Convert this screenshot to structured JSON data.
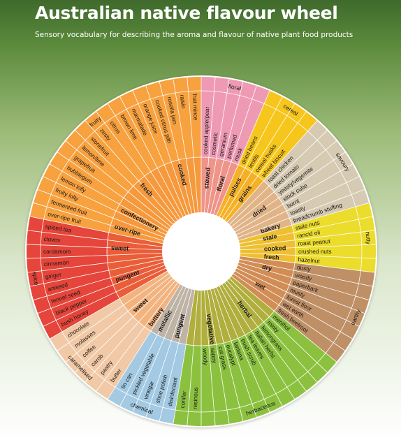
{
  "header": {
    "title": "Australian native flavour wheel",
    "subtitle": "Sensory vocabulary for describing the aroma and flavour of native plant food products"
  },
  "wheel": {
    "categories": [
      {
        "label": "floral",
        "color": "#ee9ab5",
        "groups": [
          {
            "label": "stewed",
            "descriptors": [
              "cooked apple/pear",
              "cosmetic"
            ]
          },
          {
            "label": "floral",
            "descriptors": [
              "geranium",
              "perfumed",
              "musk"
            ]
          }
        ]
      },
      {
        "label": "cereal",
        "color": "#f7c61c",
        "groups": [
          {
            "label": "pulses",
            "descriptors": [
              "dried beans",
              "lentils"
            ]
          },
          {
            "label": "grains",
            "descriptors": [
              "cereal husks",
              "wheat biscuit"
            ]
          }
        ]
      },
      {
        "label": "savoury",
        "color": "#d6cab3",
        "groups": [
          {
            "label": "dried",
            "descriptors": [
              "roast chicken",
              "dried tomato",
              "yeasty/vegemite",
              "stock cube",
              "burnt",
              "toasty"
            ]
          },
          {
            "label": "bakery",
            "descriptors": [
              "breadcrumb stuffing"
            ]
          }
        ]
      },
      {
        "label": "nutty",
        "color": "#ecdc2c",
        "groups": [
          {
            "label": "stale",
            "descriptors": [
              "stale nuts",
              "rancid oil"
            ]
          },
          {
            "label": "cooked",
            "descriptors": [
              "roast peanut",
              "crushed nuts"
            ]
          },
          {
            "label": "fresh",
            "descriptors": [
              "hazelnut"
            ]
          }
        ]
      },
      {
        "label": "earthy",
        "color": "#bf8f66",
        "groups": [
          {
            "label": "dry",
            "descriptors": [
              "dusty",
              "woody",
              "paperbark"
            ]
          },
          {
            "label": "wet",
            "descriptors": [
              "musty",
              "forest floor",
              "wet earth",
              "fresh beetroot"
            ]
          }
        ]
      },
      {
        "label": "herbaceous",
        "color": "#8cc140",
        "groups": [
          {
            "label": "herbal",
            "descriptors": [
              "menthol",
              "minty",
              "lemongrass",
              "Italian herbs",
              "tea leaves",
              "bush scrub"
            ]
          },
          {
            "label": "vegetative",
            "descriptors": [
              "lantana",
              "eucalypt",
              "cut grass",
              "sappy",
              "woody",
              "resinous",
              "conifer"
            ]
          }
        ]
      },
      {
        "label": "chemical",
        "color": "#a3c9e3",
        "groups": [
          {
            "label": "pungent",
            "descriptors": [
              "disinfectant",
              "shoe polish",
              "vinegar"
            ]
          },
          {
            "label": "metallic",
            "descriptors": [
              "pickled vegetable",
              "tin can"
            ]
          }
        ]
      },
      {
        "label": "caramelised",
        "color": "#f2c9a6",
        "groups": [
          {
            "label": "buttery",
            "descriptors": [
              "butter"
            ]
          },
          {
            "label": "sweet",
            "descriptors": [
              "pastry",
              "carob",
              "coffee",
              "molasses",
              "chocolate"
            ]
          }
        ]
      },
      {
        "label": "spice",
        "color": "#e5453a",
        "groups": [
          {
            "label": "pungent",
            "descriptors": [
              "bush honey",
              "black pepper",
              "fennel seed",
              "aniseed",
              "ginger"
            ]
          },
          {
            "label": "sweet",
            "descriptors": [
              "cinnamon",
              "cardamom",
              "cloves",
              "spiced tea"
            ]
          }
        ]
      },
      {
        "label": "fruity",
        "color": "#f7a13f",
        "groups": [
          {
            "label": "over-ripe",
            "descriptors": [
              "over-ripe fruit",
              "fermented fruit"
            ]
          },
          {
            "label": "confectionery",
            "descriptors": [
              "fruity lolly",
              "lemon lolly",
              "bubblegum"
            ]
          },
          {
            "label": "fresh",
            "descriptors": [
              "grapefruit",
              "lemon/lime",
              "stonefruit",
              "zesty",
              "citrus",
              "brown lime"
            ]
          },
          {
            "label": "cooked",
            "descriptors": [
              "marmalade",
              "orange juice",
              "cooked citrus pith",
              "rosella jam",
              "raisin",
              "fruit mince"
            ]
          }
        ]
      }
    ]
  }
}
